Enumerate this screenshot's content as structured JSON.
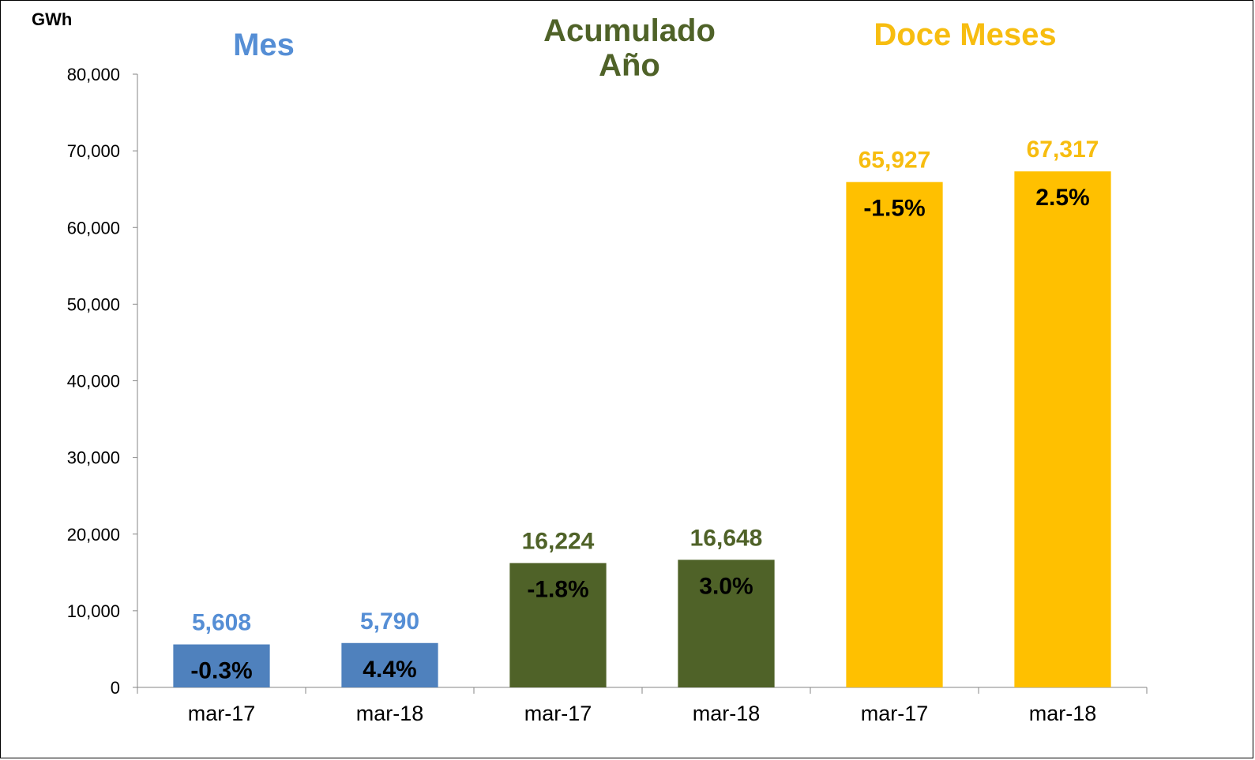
{
  "chart_data": {
    "type": "bar",
    "unit_label": "GWh",
    "ylim": [
      0,
      80000
    ],
    "y_ticks": [
      "0",
      "10,000",
      "20,000",
      "30,000",
      "40,000",
      "50,000",
      "60,000",
      "70,000",
      "80,000"
    ],
    "grid": false,
    "groups": [
      {
        "title": [
          "Mes"
        ],
        "color": "#4f81bd",
        "label_color": "#558ed5",
        "bars": [
          {
            "category": "mar-17",
            "value": 5608,
            "value_label": "5,608",
            "change_label": "-0.3%"
          },
          {
            "category": "mar-18",
            "value": 5790,
            "value_label": "5,790",
            "change_label": "4.4%"
          }
        ]
      },
      {
        "title": [
          "Acumulado",
          "Año"
        ],
        "color": "#4f6228",
        "label_color": "#4f6228",
        "bars": [
          {
            "category": "mar-17",
            "value": 16224,
            "value_label": "16,224",
            "change_label": "-1.8%"
          },
          {
            "category": "mar-18",
            "value": 16648,
            "value_label": "16,648",
            "change_label": "3.0%"
          }
        ]
      },
      {
        "title": [
          "Doce Meses"
        ],
        "color": "#ffc000",
        "label_color": "#f7bd10",
        "bars": [
          {
            "category": "mar-17",
            "value": 65927,
            "value_label": "65,927",
            "change_label": "-1.5%"
          },
          {
            "category": "mar-18",
            "value": 67317,
            "value_label": "67,317",
            "change_label": "2.5%"
          }
        ]
      }
    ]
  }
}
